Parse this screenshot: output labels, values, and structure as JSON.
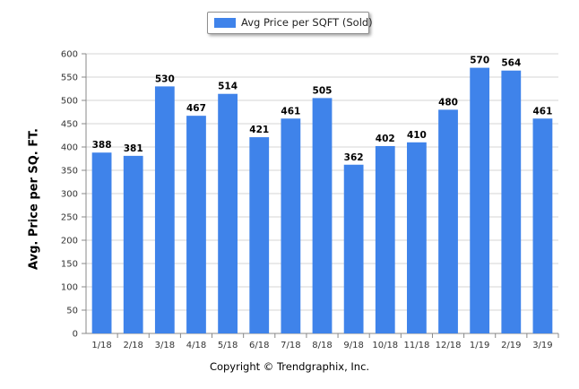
{
  "legend": {
    "label": "Avg Price per SQFT (Sold)",
    "color": "#3f83ea"
  },
  "footer": {
    "text": "Copyright © Trendgraphix, Inc."
  },
  "chart_data": {
    "type": "bar",
    "ylabel": "Avg. Price per SQ. FT.",
    "ylim": [
      0,
      600
    ],
    "yticks": [
      0,
      50,
      100,
      150,
      200,
      250,
      300,
      350,
      400,
      450,
      500,
      550,
      600
    ],
    "grid": true,
    "legend_position": "top-center",
    "categories": [
      "1/18",
      "2/18",
      "3/18",
      "4/18",
      "5/18",
      "6/18",
      "7/18",
      "8/18",
      "9/18",
      "10/18",
      "11/18",
      "12/18",
      "1/19",
      "2/19",
      "3/19"
    ],
    "series": [
      {
        "name": "Avg Price per SQFT (Sold)",
        "color": "#3f83ea",
        "values": [
          388,
          381,
          530,
          467,
          514,
          421,
          461,
          505,
          362,
          402,
          410,
          480,
          570,
          564,
          461
        ]
      }
    ]
  }
}
